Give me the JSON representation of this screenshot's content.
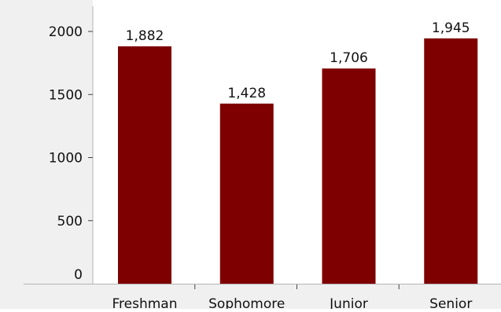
{
  "chart_data": {
    "type": "bar",
    "title": "",
    "xlabel": "",
    "ylabel": "",
    "categories": [
      "Freshman",
      "Sophomore",
      "Junior",
      "Senior"
    ],
    "values": [
      1882,
      1428,
      1706,
      1945
    ],
    "value_labels": [
      "1,882",
      "1,428",
      "1,706",
      "1,945"
    ],
    "y_ticks": [
      0,
      500,
      1000,
      1500,
      2000
    ],
    "y_tick_labels": [
      "0",
      "500",
      "1000",
      "1500",
      "2000"
    ],
    "ylim": [
      0,
      2000
    ],
    "grid": false,
    "legend": "none",
    "colors": {
      "bar": "#7f0000",
      "axis_background": "#f0f0f0",
      "axis_line": "#b4b4b4",
      "text": "#111111"
    }
  }
}
